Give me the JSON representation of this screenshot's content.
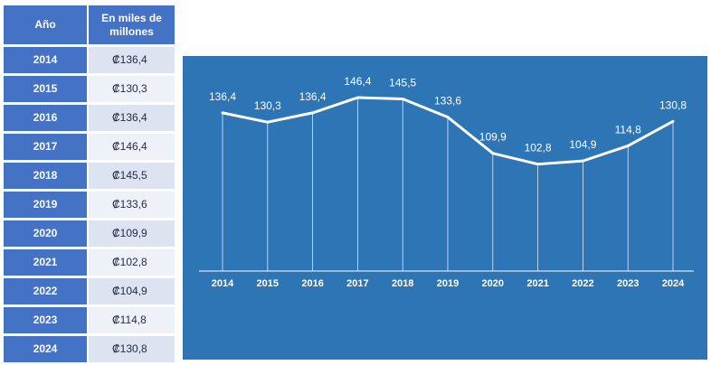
{
  "table": {
    "header_year": "Año",
    "header_value": "En miles de millones",
    "rows": [
      {
        "year": "2014",
        "value": "₡136,4"
      },
      {
        "year": "2015",
        "value": "₡130,3"
      },
      {
        "year": "2016",
        "value": "₡136,4"
      },
      {
        "year": "2017",
        "value": "₡146,4"
      },
      {
        "year": "2018",
        "value": "₡145,5"
      },
      {
        "year": "2019",
        "value": "₡133,6"
      },
      {
        "year": "2020",
        "value": "₡109,9"
      },
      {
        "year": "2021",
        "value": "₡102,8"
      },
      {
        "year": "2022",
        "value": "₡104,9"
      },
      {
        "year": "2023",
        "value": "₡114,8"
      },
      {
        "year": "2024",
        "value": "₡130,8"
      }
    ]
  },
  "chart_data": {
    "type": "line",
    "categories": [
      "2014",
      "2015",
      "2016",
      "2017",
      "2018",
      "2019",
      "2020",
      "2021",
      "2022",
      "2023",
      "2024"
    ],
    "values": [
      136.4,
      130.3,
      136.4,
      146.4,
      145.5,
      133.6,
      109.9,
      102.8,
      104.9,
      114.8,
      130.8
    ],
    "data_labels": [
      "136,4",
      "130,3",
      "136,4",
      "146,4",
      "145,5",
      "133,6",
      "109,9",
      "102,8",
      "104,9",
      "114,8",
      "130,8"
    ],
    "ylim": [
      0,
      160
    ],
    "grid": false,
    "legend": "none",
    "colors": {
      "background": "#2e75b6",
      "line": "#ffffff",
      "drop_lines": "#ffffff"
    }
  }
}
